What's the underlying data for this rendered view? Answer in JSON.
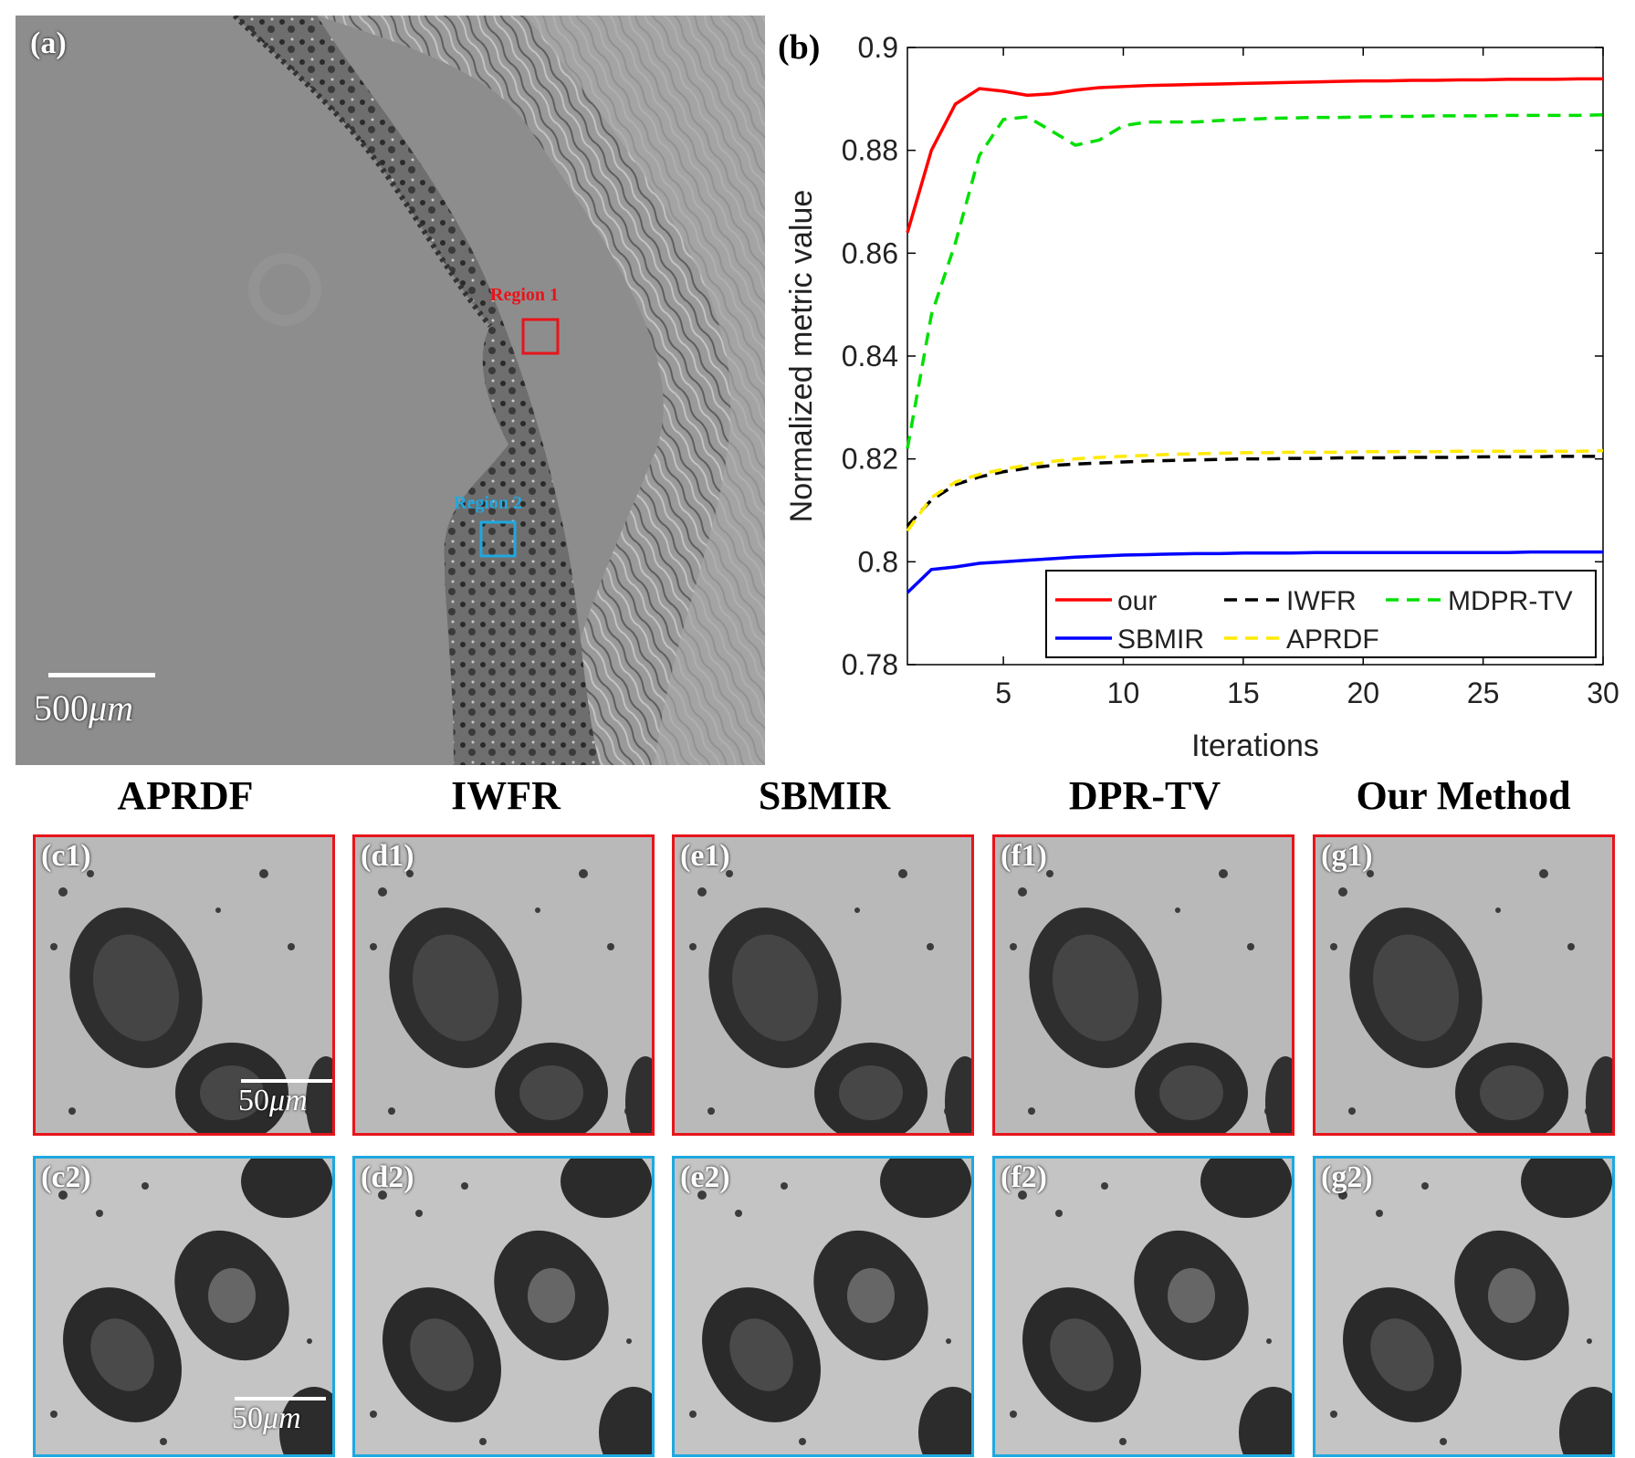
{
  "panel_a": {
    "label": "(a)",
    "region1_label": "Region 1",
    "region2_label": "Region 2",
    "scale_value": "500",
    "scale_unit": "μm",
    "colors": {
      "region1": "#e8141b",
      "region2": "#1fa8e0"
    }
  },
  "panel_b": {
    "label": "(b)"
  },
  "chart_data": {
    "type": "line",
    "title": "",
    "xlabel": "Iterations",
    "ylabel": "Normalized metric value",
    "xlim": [
      1,
      30
    ],
    "ylim": [
      0.78,
      0.9
    ],
    "xticks": [
      5,
      10,
      15,
      20,
      25,
      30
    ],
    "yticks": [
      0.78,
      0.8,
      0.82,
      0.84,
      0.86,
      0.88,
      0.9
    ],
    "ytick_labels": [
      "0.78",
      "0.8",
      "0.82",
      "0.84",
      "0.86",
      "0.88",
      "0.9"
    ],
    "legend_position": "bottom",
    "grid": false,
    "x": [
      1,
      2,
      3,
      4,
      5,
      6,
      7,
      8,
      9,
      10,
      11,
      12,
      13,
      14,
      15,
      16,
      17,
      18,
      19,
      20,
      21,
      22,
      23,
      24,
      25,
      26,
      27,
      28,
      29,
      30
    ],
    "series": [
      {
        "name": "our",
        "color": "#ff0000",
        "dash": "solid",
        "values": [
          0.864,
          0.88,
          0.889,
          0.892,
          0.8915,
          0.8907,
          0.891,
          0.8917,
          0.8922,
          0.8924,
          0.8926,
          0.8927,
          0.8928,
          0.8929,
          0.893,
          0.8931,
          0.8932,
          0.8933,
          0.8934,
          0.8935,
          0.8935,
          0.8936,
          0.8936,
          0.8937,
          0.8937,
          0.8938,
          0.8938,
          0.8938,
          0.8939,
          0.8939
        ]
      },
      {
        "name": "IWFR",
        "color": "#000000",
        "dash": "dashed",
        "values": [
          0.807,
          0.812,
          0.815,
          0.8165,
          0.8175,
          0.8182,
          0.8187,
          0.819,
          0.8192,
          0.8194,
          0.8196,
          0.8197,
          0.8198,
          0.8199,
          0.82,
          0.82,
          0.8201,
          0.8201,
          0.8202,
          0.8202,
          0.8202,
          0.8203,
          0.8203,
          0.8203,
          0.8204,
          0.8204,
          0.8204,
          0.8205,
          0.8205,
          0.8205
        ]
      },
      {
        "name": "MDPR-TV",
        "color": "#00e000",
        "dash": "dashed",
        "values": [
          0.822,
          0.848,
          0.862,
          0.879,
          0.886,
          0.8865,
          0.8838,
          0.881,
          0.882,
          0.8848,
          0.8855,
          0.8855,
          0.8855,
          0.8858,
          0.886,
          0.8862,
          0.8863,
          0.8864,
          0.8864,
          0.8865,
          0.8866,
          0.8866,
          0.8867,
          0.8867,
          0.8867,
          0.8868,
          0.8868,
          0.8868,
          0.8868,
          0.8869
        ]
      },
      {
        "name": "SBMIR",
        "color": "#0000ff",
        "dash": "solid",
        "values": [
          0.794,
          0.7985,
          0.799,
          0.7997,
          0.8,
          0.8003,
          0.8006,
          0.8009,
          0.8011,
          0.8013,
          0.8014,
          0.8015,
          0.8016,
          0.8016,
          0.8017,
          0.8017,
          0.8017,
          0.8018,
          0.8018,
          0.8018,
          0.8018,
          0.8018,
          0.8018,
          0.8018,
          0.8018,
          0.8018,
          0.8019,
          0.8019,
          0.8019,
          0.8019
        ]
      },
      {
        "name": "APRDF",
        "color": "#ffea00",
        "dash": "dashed",
        "values": [
          0.806,
          0.8125,
          0.8155,
          0.817,
          0.818,
          0.8188,
          0.8195,
          0.82,
          0.8203,
          0.8205,
          0.8207,
          0.8209,
          0.821,
          0.8211,
          0.8212,
          0.8212,
          0.8213,
          0.8213,
          0.8213,
          0.8214,
          0.8214,
          0.8214,
          0.8214,
          0.8215,
          0.8215,
          0.8215,
          0.8215,
          0.8215,
          0.8215,
          0.8216
        ]
      }
    ]
  },
  "columns": [
    "APRDF",
    "IWFR",
    "SBMIR",
    "DPR-TV",
    "Our Method"
  ],
  "row1_labels": [
    "(c1)",
    "(d1)",
    "(e1)",
    "(f1)",
    "(g1)"
  ],
  "row2_labels": [
    "(c2)",
    "(d2)",
    "(e2)",
    "(f2)",
    "(g2)"
  ],
  "crop_scale": {
    "value": "50",
    "unit": "μm"
  }
}
